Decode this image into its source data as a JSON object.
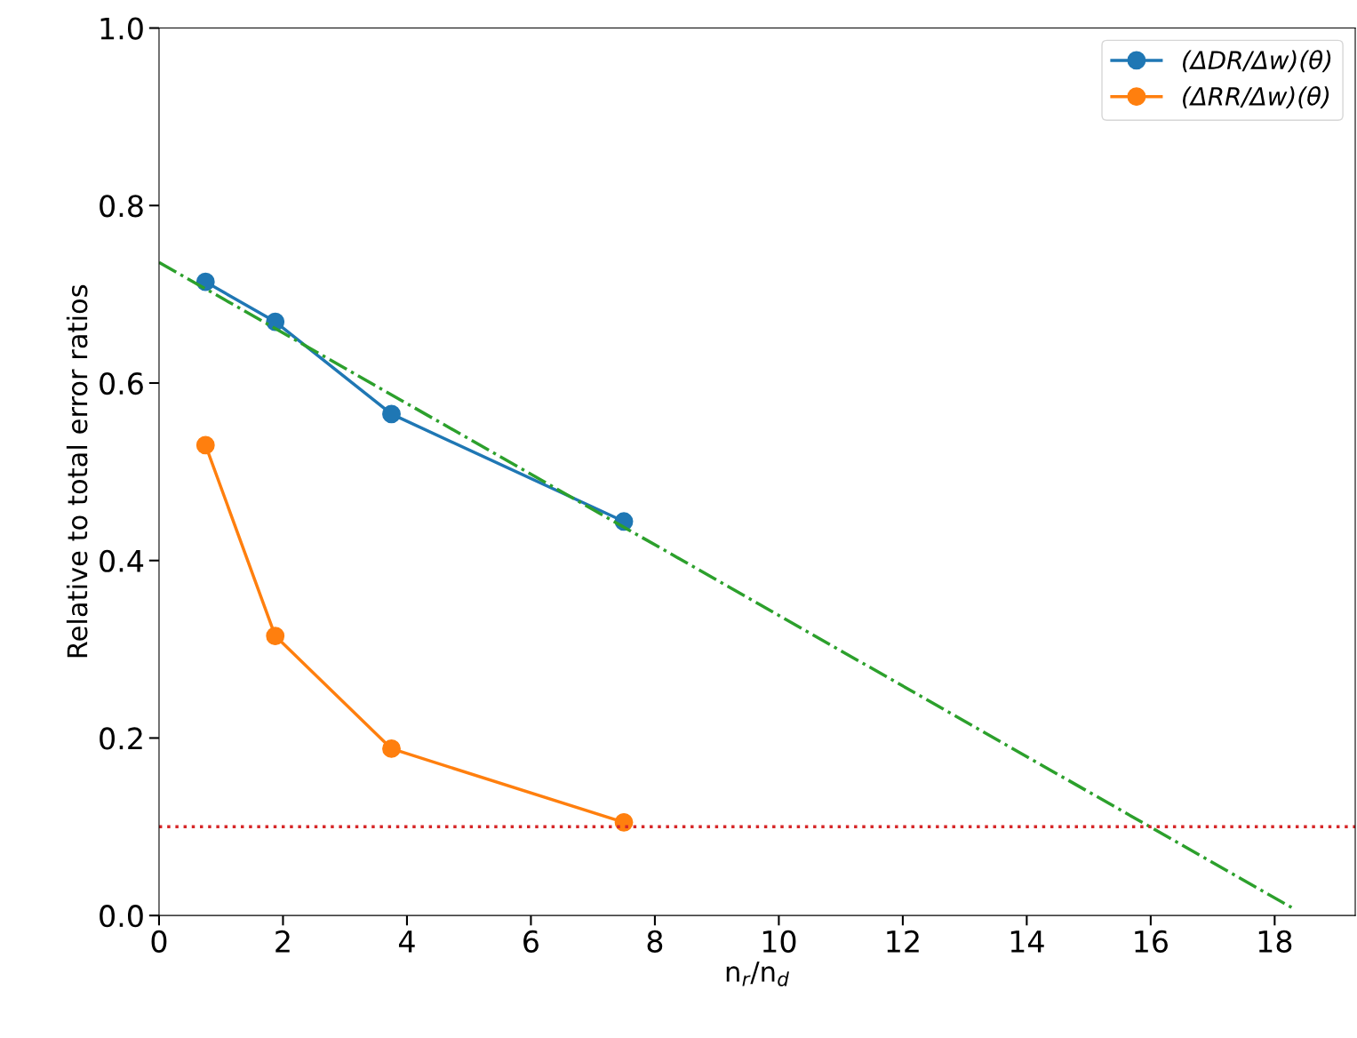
{
  "chart_data": {
    "type": "line",
    "xlabel": "n$_{r}$/n$_{d}$",
    "ylabel": "Relative to total error ratios",
    "xlim": [
      0,
      19.3
    ],
    "ylim": [
      0,
      1.0
    ],
    "xticks": [
      0,
      2,
      4,
      6,
      8,
      10,
      12,
      14,
      16,
      18
    ],
    "yticks": [
      {
        "value": 0,
        "label": "0.0"
      },
      {
        "value": 0.2,
        "label": "0.2"
      },
      {
        "value": 0.4,
        "label": "0.4"
      },
      {
        "value": 0.6,
        "label": "0.6"
      },
      {
        "value": 0.8,
        "label": "0.8"
      },
      {
        "value": 1.0,
        "label": "1.0"
      }
    ],
    "x": [
      0.75,
      1.875,
      3.75,
      7.5
    ],
    "series": [
      {
        "name": "(ΔDR/Δw)(θ)",
        "color": "#1f77b4",
        "values": [
          0.714,
          0.669,
          0.565,
          0.444
        ],
        "marker": "circle",
        "line_style": "solid"
      },
      {
        "name": "(ΔRR/Δw)(θ)",
        "color": "#ff7f0e",
        "values": [
          0.53,
          0.315,
          0.188,
          0.105
        ],
        "marker": "circle",
        "line_style": "solid"
      },
      {
        "type": "line",
        "x": [
          0,
          18.3
        ],
        "color": "#2ca02c",
        "values": [
          0.736,
          0.008
        ],
        "marker": "none",
        "line_style": "dashdot"
      }
    ],
    "ref_lines": [
      {
        "axis": "y",
        "value": 0.1,
        "color": "#d62728",
        "line_style": "dotted"
      }
    ],
    "legend": "top right",
    "grid": false
  }
}
